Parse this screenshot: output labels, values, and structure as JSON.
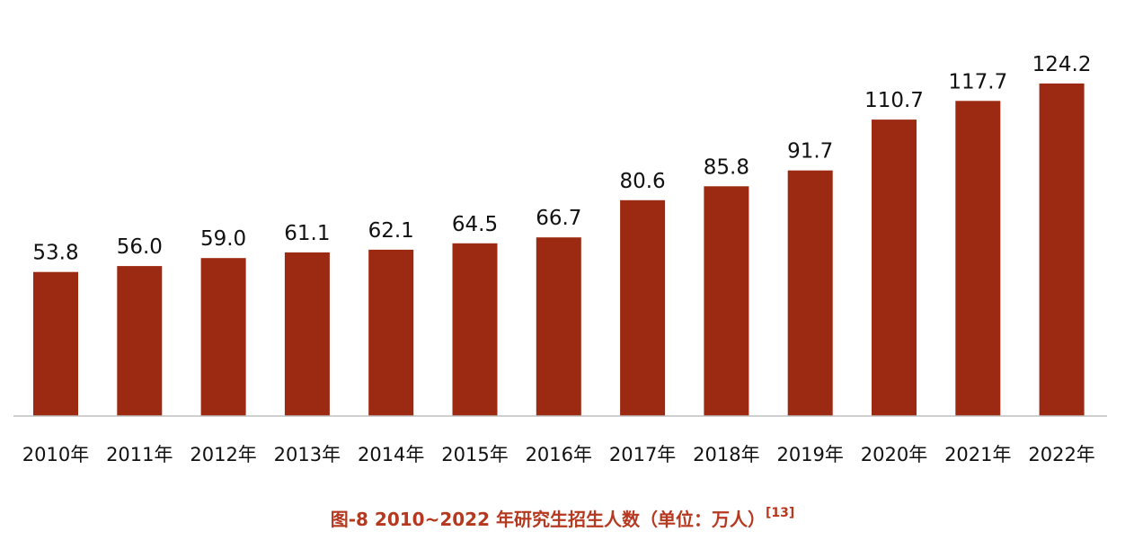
{
  "chart_data": {
    "type": "bar",
    "categories": [
      "2010年",
      "2011年",
      "2012年",
      "2013年",
      "2014年",
      "2015年",
      "2016年",
      "2017年",
      "2018年",
      "2019年",
      "2020年",
      "2021年",
      "2022年"
    ],
    "values": [
      53.8,
      56.0,
      59.0,
      61.1,
      62.1,
      64.5,
      66.7,
      80.6,
      85.8,
      91.7,
      110.7,
      117.7,
      124.2
    ],
    "value_labels": [
      "53.8",
      "56.0",
      "59.0",
      "61.1",
      "62.1",
      "64.5",
      "66.7",
      "80.6",
      "85.8",
      "91.7",
      "110.7",
      "117.7",
      "124.2"
    ],
    "bar_color": "#9c2a12",
    "caption_color": "#b5381f",
    "title": "图-8 2010~2022 年研究生招生人数（单位：万人）",
    "title_ref": "[13]",
    "xlabel": "",
    "ylabel": "",
    "ylim": [
      0,
      124.2
    ],
    "grid": false,
    "legend": "none"
  }
}
